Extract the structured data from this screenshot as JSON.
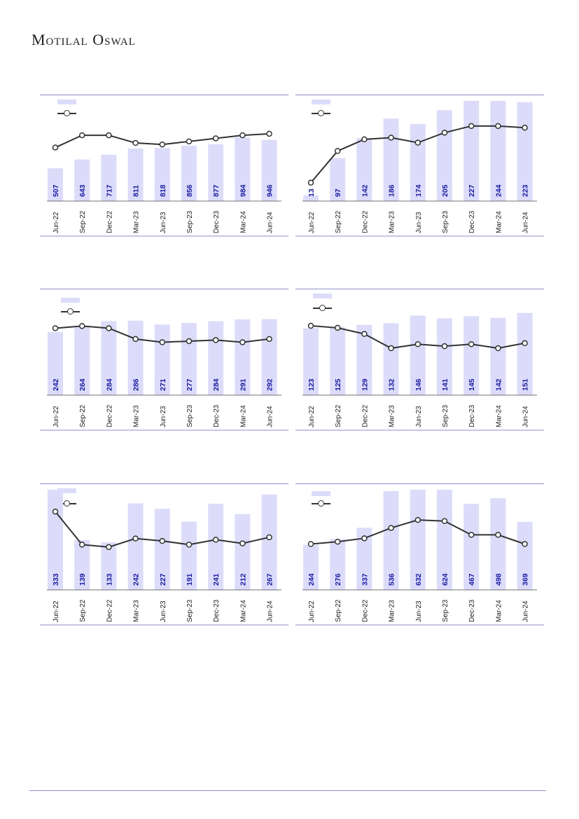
{
  "brand": "Motilal Oswal",
  "charts": [
    {
      "type": "bar+line",
      "categories": [
        "Jun-22",
        "Sep-22",
        "Dec-22",
        "Mar-23",
        "Jun-23",
        "Sep-23",
        "Dec-23",
        "Mar-24",
        "Jun-24"
      ],
      "bar_values": [
        507,
        643,
        717,
        811,
        818,
        856,
        877,
        984,
        946
      ],
      "line_values": [
        45,
        53,
        53,
        48,
        47,
        49,
        51,
        53,
        54
      ],
      "bar_max": 1850,
      "line_range": [
        10,
        70
      ]
    },
    {
      "type": "bar+line",
      "categories": [
        "Jun-22",
        "Sep-22",
        "Dec-22",
        "Mar-23",
        "Jun-23",
        "Sep-23",
        "Dec-23",
        "Mar-24",
        "Jun-24"
      ],
      "bar_values": [
        13,
        97,
        142,
        186,
        174,
        205,
        227,
        244,
        223
      ],
      "line_values": [
        11,
        30,
        37,
        38,
        35,
        41,
        45,
        45,
        44
      ],
      "bar_max": 270,
      "line_range": [
        0,
        55
      ]
    },
    {
      "type": "bar+line",
      "categories": [
        "Jun-22",
        "Sep-22",
        "Dec-22",
        "Mar-23",
        "Jun-23",
        "Sep-23",
        "Dec-23",
        "Mar-24",
        "Jun-24"
      ],
      "bar_values": [
        242,
        264,
        284,
        286,
        271,
        277,
        284,
        291,
        292
      ],
      "line_values": [
        62,
        64,
        62,
        52,
        49,
        50,
        51,
        49,
        52
      ],
      "bar_max": 460,
      "line_range": [
        0,
        85
      ]
    },
    {
      "type": "bar+line",
      "categories": [
        "Jun-22",
        "Sep-22",
        "Dec-22",
        "Mar-23",
        "Jun-23",
        "Sep-23",
        "Dec-23",
        "Mar-24",
        "Jun-24"
      ],
      "bar_values": [
        123,
        125,
        129,
        132,
        146,
        141,
        145,
        142,
        151
      ],
      "line_values": [
        68,
        66,
        60,
        46,
        50,
        48,
        50,
        46,
        51
      ],
      "bar_max": 220,
      "line_range": [
        0,
        90
      ]
    },
    {
      "type": "bar+line",
      "categories": [
        "Jun-22",
        "Sep-22",
        "Dec-22",
        "Mar-23",
        "Jun-23",
        "Sep-23",
        "Dec-23",
        "Mar-24",
        "Jun-24"
      ],
      "bar_values": [
        333,
        139,
        133,
        242,
        227,
        191,
        241,
        212,
        267
      ],
      "line_values": [
        64,
        37,
        35,
        42,
        40,
        37,
        41,
        38,
        43
      ],
      "bar_max": 335,
      "line_range": [
        0,
        75
      ]
    },
    {
      "type": "bar+line",
      "categories": [
        "Jun-22",
        "Sep-22",
        "Dec-22",
        "Mar-23",
        "Jun-23",
        "Sep-23",
        "Dec-23",
        "Mar-24",
        "Jun-24"
      ],
      "bar_values": [
        244,
        276,
        337,
        536,
        632,
        624,
        467,
        498,
        369
      ],
      "line_values": [
        40,
        42,
        45,
        54,
        61,
        60,
        48,
        48,
        40
      ],
      "bar_max": 650,
      "line_range": [
        0,
        80
      ]
    }
  ],
  "colors": {
    "bar": "#dcdcfa",
    "line": "#333333",
    "bar_label": "#1a1aa0",
    "rule": "#8f8fc9"
  }
}
